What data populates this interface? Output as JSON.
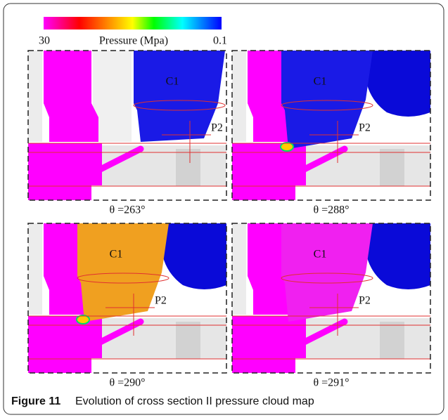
{
  "colorbar": {
    "min_label": "30",
    "title": "Pressure (Mpa)",
    "max_label": "0.1"
  },
  "panels": [
    {
      "chamber_label": "C1",
      "port_label": "P2",
      "angle": "θ =263°"
    },
    {
      "chamber_label": "C1",
      "port_label": "P2",
      "angle": "θ =288°"
    },
    {
      "chamber_label": "C1",
      "port_label": "P2",
      "angle": "θ =290°"
    },
    {
      "chamber_label": "C1",
      "port_label": "P2",
      "angle": "θ =291°"
    }
  ],
  "caption": {
    "label": "Figure 11",
    "text": "Evolution of cross section II pressure cloud map"
  }
}
